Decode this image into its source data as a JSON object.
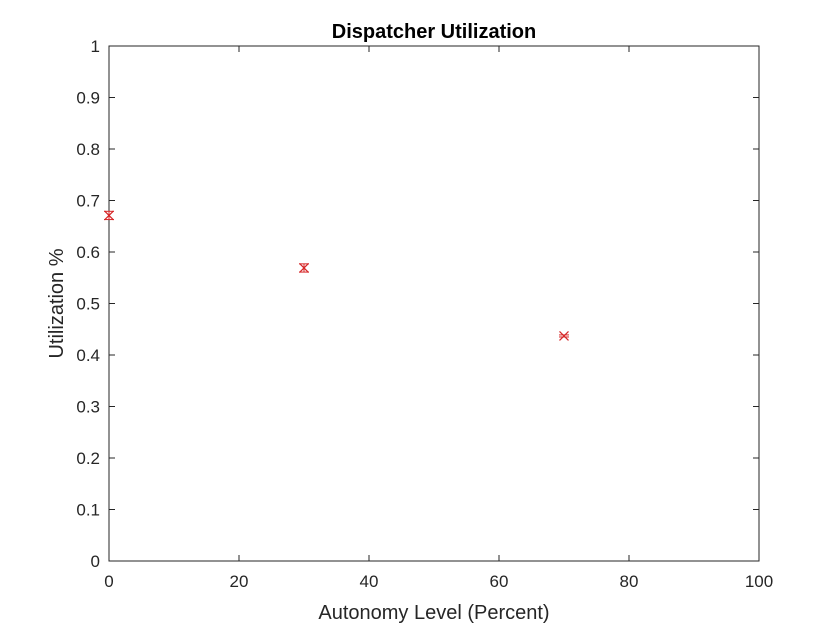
{
  "chart_data": {
    "type": "scatter",
    "title": "Dispatcher Utilization",
    "xlabel": "Autonomy Level (Percent)",
    "ylabel": "Utilization %",
    "xlim": [
      0,
      100
    ],
    "ylim": [
      0,
      1
    ],
    "x_ticks": [
      "0",
      "20",
      "40",
      "60",
      "80",
      "100"
    ],
    "y_ticks": [
      "0",
      "0.1",
      "0.2",
      "0.3",
      "0.4",
      "0.5",
      "0.6",
      "0.7",
      "0.8",
      "0.9",
      "1"
    ],
    "grid": false,
    "marker": "x",
    "color": "#d62728",
    "series": [
      {
        "points": [
          {
            "x": 0,
            "y": 0.671,
            "err_low": 0.008,
            "err_high": 0.008
          },
          {
            "x": 30,
            "y": 0.569,
            "err_low": 0.008,
            "err_high": 0.008
          },
          {
            "x": 70,
            "y": 0.437,
            "err_low": 0.002,
            "err_high": 0.002
          }
        ]
      }
    ]
  }
}
